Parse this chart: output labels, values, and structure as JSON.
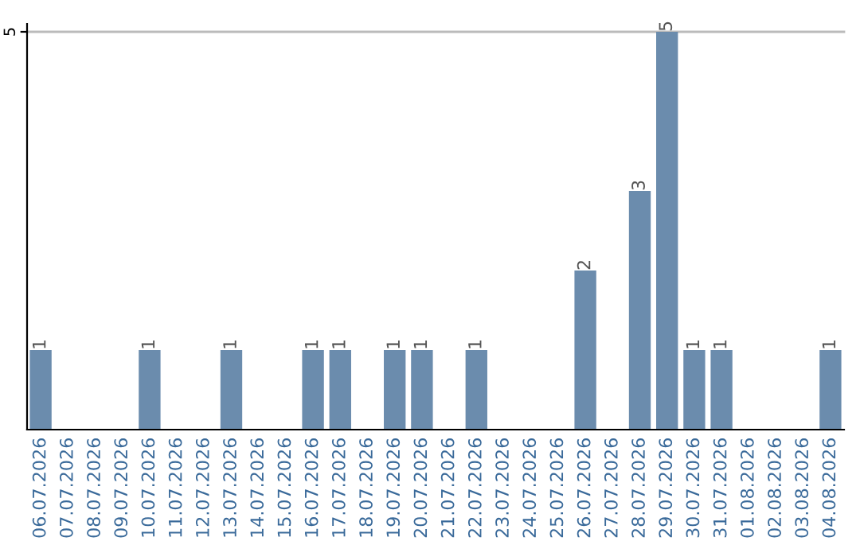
{
  "chart_data": {
    "type": "bar",
    "categories": [
      "06.07.2026",
      "07.07.2026",
      "08.07.2026",
      "09.07.2026",
      "10.07.2026",
      "11.07.2026",
      "12.07.2026",
      "13.07.2026",
      "14.07.2026",
      "15.07.2026",
      "16.07.2026",
      "17.07.2026",
      "18.07.2026",
      "19.07.2026",
      "20.07.2026",
      "21.07.2026",
      "22.07.2026",
      "23.07.2026",
      "24.07.2026",
      "25.07.2026",
      "26.07.2026",
      "27.07.2026",
      "28.07.2026",
      "29.07.2026",
      "30.07.2026",
      "31.07.2026",
      "01.08.2026",
      "02.08.2026",
      "03.08.2026",
      "04.08.2026"
    ],
    "values": [
      1,
      0,
      0,
      0,
      1,
      0,
      0,
      1,
      0,
      0,
      1,
      1,
      0,
      1,
      1,
      0,
      1,
      0,
      0,
      0,
      2,
      0,
      3,
      5,
      1,
      1,
      0,
      0,
      0,
      1
    ],
    "value_labels": [
      "1",
      null,
      null,
      null,
      "1",
      null,
      null,
      "1",
      null,
      null,
      "1",
      "1",
      null,
      "1",
      "1",
      null,
      "1",
      null,
      null,
      null,
      "2",
      null,
      "3",
      "5",
      "1",
      "1",
      null,
      null,
      null,
      "1"
    ],
    "color": "#6b8cad",
    "ylim": [
      0,
      5.1
    ],
    "yticks": [
      5
    ],
    "grid": "y"
  }
}
